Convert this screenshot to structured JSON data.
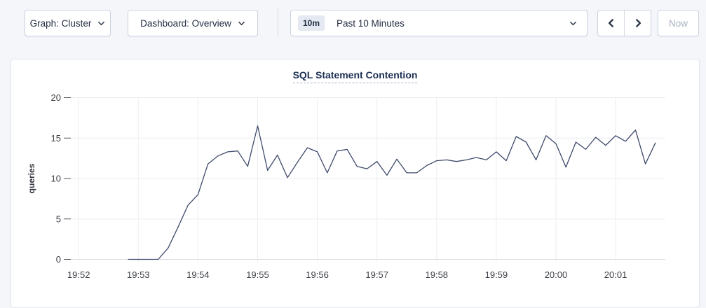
{
  "toolbar": {
    "graph_selector": {
      "label": "Graph: Cluster",
      "icon": "chevron-down"
    },
    "dashboard_selector": {
      "label": "Dashboard: Overview",
      "icon": "chevron-down"
    },
    "time_picker": {
      "badge": "10m",
      "label": "Past 10 Minutes",
      "icon": "chevron-down"
    },
    "back_icon": "chevron-left",
    "forward_icon": "chevron-right",
    "now_label": "Now",
    "forward_disabled": true,
    "now_disabled": true
  },
  "colors": {
    "page_background": "#f4f6fa",
    "card_background": "#ffffff",
    "button_border": "#ccd2df",
    "text_primary": "#242e42",
    "title_text": "#1c2f54",
    "disabled_text": "#a9b0bf",
    "line": "#3e4a6b",
    "grid": "#ebedf1",
    "axis": "#d8dade",
    "tick_mark": "#53565e",
    "tick_text": "#3b3e44"
  },
  "chart_data": {
    "type": "line",
    "title": "SQL Statement Contention",
    "xlabel": "",
    "ylabel": "queries",
    "ylim": [
      0,
      20
    ],
    "yticks": [
      0,
      5,
      10,
      15,
      20
    ],
    "xticks": [
      "19:52",
      "19:53",
      "19:54",
      "19:55",
      "19:56",
      "19:57",
      "19:58",
      "19:59",
      "20:00",
      "20:01"
    ],
    "x_window": [
      "19:51:50",
      "20:01:50"
    ],
    "grid": true,
    "legend": "none",
    "series": [
      {
        "name": "queries",
        "x": [
          "19:52:50",
          "19:53:00",
          "19:53:10",
          "19:53:20",
          "19:53:30",
          "19:53:40",
          "19:53:50",
          "19:54:00",
          "19:54:10",
          "19:54:20",
          "19:54:30",
          "19:54:40",
          "19:54:50",
          "19:55:00",
          "19:55:10",
          "19:55:20",
          "19:55:30",
          "19:55:40",
          "19:55:50",
          "19:56:00",
          "19:56:10",
          "19:56:20",
          "19:56:30",
          "19:56:40",
          "19:56:50",
          "19:57:00",
          "19:57:10",
          "19:57:20",
          "19:57:30",
          "19:57:40",
          "19:57:50",
          "19:58:00",
          "19:58:10",
          "19:58:20",
          "19:58:30",
          "19:58:40",
          "19:58:50",
          "19:59:00",
          "19:59:10",
          "19:59:20",
          "19:59:30",
          "19:59:40",
          "19:59:50",
          "20:00:00",
          "20:00:10",
          "20:00:20",
          "20:00:30",
          "20:00:40",
          "20:00:50",
          "20:01:00",
          "20:01:10",
          "20:01:20",
          "20:01:30",
          "20:01:40"
        ],
        "values": [
          0,
          0,
          0,
          0,
          1.4,
          4.0,
          6.7,
          8.0,
          11.8,
          12.8,
          13.3,
          13.4,
          11.5,
          16.5,
          11.0,
          12.9,
          10.1,
          12.0,
          13.8,
          13.3,
          10.7,
          13.4,
          13.6,
          11.5,
          11.2,
          12.1,
          10.4,
          12.4,
          10.7,
          10.7,
          11.6,
          12.2,
          12.3,
          12.1,
          12.3,
          12.6,
          12.3,
          13.3,
          12.2,
          15.2,
          14.5,
          12.3,
          15.3,
          14.3,
          11.4,
          14.5,
          13.6,
          15.1,
          14.1,
          15.3,
          14.6,
          16.0,
          11.8,
          14.4
        ]
      }
    ]
  }
}
